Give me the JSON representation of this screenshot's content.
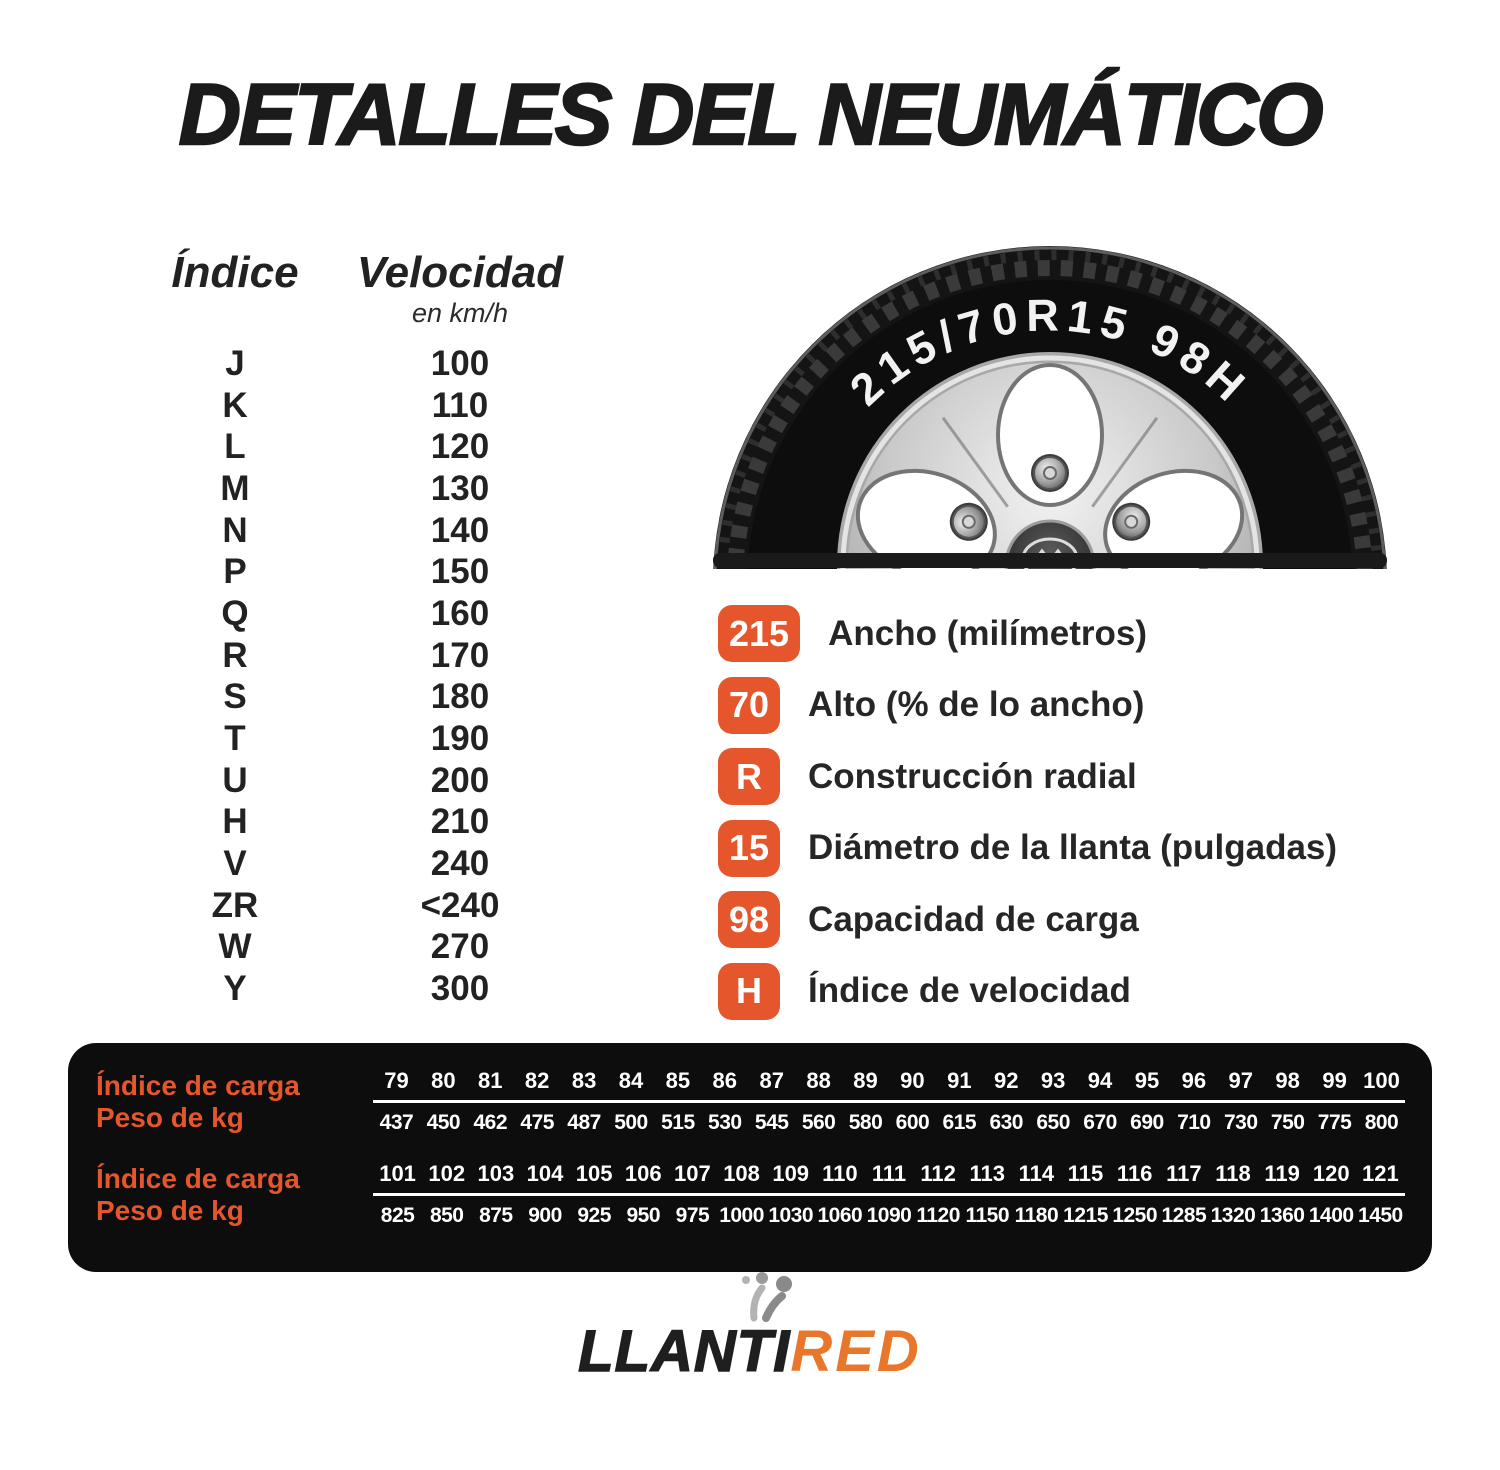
{
  "title": "DETALLES DEL NEUMÁTICO",
  "speed_table": {
    "col1_header": "Índice",
    "col2_header": "Velocidad",
    "col2_subheader": "en km/h",
    "rows": [
      {
        "index": "J",
        "speed": "100"
      },
      {
        "index": "K",
        "speed": "110"
      },
      {
        "index": "L",
        "speed": "120"
      },
      {
        "index": "M",
        "speed": "130"
      },
      {
        "index": "N",
        "speed": "140"
      },
      {
        "index": "P",
        "speed": "150"
      },
      {
        "index": "Q",
        "speed": "160"
      },
      {
        "index": "R",
        "speed": "170"
      },
      {
        "index": "S",
        "speed": "180"
      },
      {
        "index": "T",
        "speed": "190"
      },
      {
        "index": "U",
        "speed": "200"
      },
      {
        "index": "H",
        "speed": "210"
      },
      {
        "index": "V",
        "speed": "240"
      },
      {
        "index": "ZR",
        "speed": "<240"
      },
      {
        "index": "W",
        "speed": "270"
      },
      {
        "index": "Y",
        "speed": "300"
      }
    ]
  },
  "tire": {
    "marking": "215/70R15 98H"
  },
  "legend": {
    "items": [
      {
        "badge": "215",
        "label": "Ancho (milímetros)"
      },
      {
        "badge": "70",
        "label": "Alto (% de lo ancho)"
      },
      {
        "badge": "R",
        "label": "Construcción radial"
      },
      {
        "badge": "15",
        "label": "Diámetro de la llanta (pulgadas)"
      },
      {
        "badge": "98",
        "label": "Capacidad de carga"
      },
      {
        "badge": "H",
        "label": "Índice de velocidad"
      }
    ]
  },
  "load_table": {
    "row_label_index": "Índice de carga",
    "row_label_weight": "Peso de kg",
    "blocks": [
      {
        "indices": [
          79,
          80,
          81,
          82,
          83,
          84,
          85,
          86,
          87,
          88,
          89,
          90,
          91,
          92,
          93,
          94,
          95,
          96,
          97,
          98,
          99,
          100
        ],
        "weights": [
          437,
          450,
          462,
          475,
          487,
          500,
          515,
          530,
          545,
          560,
          580,
          600,
          615,
          630,
          650,
          670,
          690,
          710,
          730,
          750,
          775,
          800
        ]
      },
      {
        "indices": [
          101,
          102,
          103,
          104,
          105,
          106,
          107,
          108,
          109,
          110,
          111,
          112,
          113,
          114,
          115,
          116,
          117,
          118,
          119,
          120,
          121
        ],
        "weights": [
          825,
          850,
          875,
          900,
          925,
          950,
          975,
          1000,
          1030,
          1060,
          1090,
          1120,
          1150,
          1180,
          1215,
          1250,
          1285,
          1320,
          1360,
          1400,
          1450
        ]
      }
    ]
  },
  "logo": {
    "part1": "LLANTI",
    "part2": "RED"
  },
  "colors": {
    "accent_orange": "#E5562C",
    "logo_orange": "#E8772C",
    "panel_black": "#0D0D0D",
    "text_dark": "#202020"
  }
}
